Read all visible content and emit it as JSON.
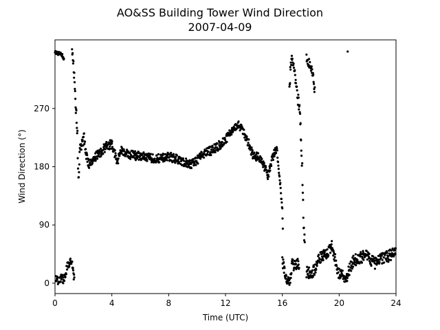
{
  "chart_data": {
    "type": "scatter",
    "title": "AO&SS Building Tower Wind Direction",
    "subtitle": "2007-04-09",
    "xlabel": "Time (UTC)",
    "ylabel": "Wind Direction (°)",
    "xlim": [
      0,
      24
    ],
    "ylim": [
      -16,
      376
    ],
    "x_ticks": [
      0,
      4,
      8,
      12,
      16,
      20,
      24
    ],
    "y_ticks": [
      0,
      90,
      180,
      270
    ],
    "grid": false,
    "marker_color": "#000000",
    "series": [
      {
        "segments": [
          {
            "points": [
              [
                0.0,
                356
              ],
              [
                0.3,
                355
              ],
              [
                0.55,
                351
              ],
              [
                0.65,
                345
              ]
            ],
            "jitter": 3
          },
          {
            "points": [
              [
                0.05,
                6
              ],
              [
                0.25,
                3
              ],
              [
                0.45,
                8
              ],
              [
                0.6,
                5
              ],
              [
                0.75,
                16
              ],
              [
                0.85,
                26
              ],
              [
                1.0,
                30
              ],
              [
                1.15,
                34
              ],
              [
                1.25,
                28
              ],
              [
                1.3,
                12
              ],
              [
                1.38,
                3
              ]
            ],
            "jitter": 6
          },
          {
            "points": [
              [
                1.2,
                355
              ],
              [
                1.3,
                340
              ],
              [
                1.38,
                310
              ],
              [
                1.45,
                275
              ],
              [
                1.52,
                255
              ],
              [
                1.58,
                230
              ],
              [
                1.6,
                190
              ],
              [
                1.65,
                160
              ],
              [
                1.75,
                205
              ],
              [
                1.9,
                215
              ],
              [
                2.05,
                225
              ],
              [
                2.2,
                195
              ],
              [
                2.4,
                185
              ]
            ],
            "jitter": 8
          },
          {
            "points": [
              [
                2.4,
                185
              ],
              [
                2.8,
                195
              ],
              [
                3.2,
                202
              ],
              [
                3.6,
                212
              ],
              [
                4.0,
                215
              ],
              [
                4.2,
                200
              ],
              [
                4.4,
                185
              ],
              [
                4.6,
                205
              ],
              [
                5.0,
                200
              ],
              [
                5.5,
                198
              ],
              [
                6.0,
                196
              ],
              [
                6.5,
                195
              ],
              [
                7.0,
                193
              ],
              [
                7.5,
                193
              ],
              [
                8.0,
                196
              ],
              [
                8.5,
                192
              ],
              [
                9.0,
                188
              ],
              [
                9.5,
                183
              ],
              [
                10.0,
                190
              ],
              [
                10.5,
                200
              ],
              [
                11.0,
                205
              ],
              [
                11.5,
                212
              ],
              [
                12.0,
                220
              ],
              [
                12.3,
                232
              ],
              [
                12.6,
                242
              ],
              [
                12.9,
                244
              ],
              [
                13.2,
                238
              ],
              [
                13.4,
                228
              ],
              [
                13.6,
                218
              ],
              [
                13.9,
                200
              ],
              [
                14.2,
                195
              ],
              [
                14.5,
                192
              ],
              [
                14.8,
                178
              ],
              [
                15.0,
                165
              ],
              [
                15.2,
                185
              ],
              [
                15.4,
                200
              ],
              [
                15.6,
                210
              ],
              [
                15.7,
                185
              ],
              [
                15.8,
                165
              ],
              [
                15.9,
                140
              ],
              [
                16.0,
                110
              ],
              [
                16.05,
                80
              ]
            ],
            "jitter": 7
          },
          {
            "points": [
              [
                16.0,
                35
              ],
              [
                16.1,
                25
              ],
              [
                16.2,
                15
              ],
              [
                16.35,
                5
              ],
              [
                16.5,
                3
              ],
              [
                16.6,
                12
              ],
              [
                16.7,
                30
              ],
              [
                16.9,
                26
              ],
              [
                17.1,
                30
              ],
              [
                17.2,
                22
              ]
            ],
            "jitter": 8
          },
          {
            "points": [
              [
                16.5,
                300
              ],
              [
                16.6,
                340
              ],
              [
                16.75,
                345
              ],
              [
                16.9,
                320
              ],
              [
                17.0,
                300
              ],
              [
                17.1,
                285
              ],
              [
                17.25,
                260
              ],
              [
                17.3,
                230
              ],
              [
                17.35,
                200
              ],
              [
                17.4,
                180
              ],
              [
                17.5,
                80
              ],
              [
                17.6,
                60
              ]
            ],
            "jitter": 10
          },
          {
            "points": [
              [
                17.7,
                350
              ],
              [
                18.1,
                330
              ],
              [
                18.3,
                295
              ]
            ],
            "jitter": 8
          },
          {
            "points": [
              [
                17.7,
                18
              ],
              [
                18.0,
                14
              ],
              [
                18.3,
                22
              ],
              [
                18.6,
                38
              ],
              [
                19.0,
                45
              ],
              [
                19.3,
                50
              ],
              [
                19.5,
                58
              ],
              [
                19.7,
                40
              ],
              [
                19.9,
                18
              ],
              [
                20.2,
                12
              ],
              [
                20.5,
                8
              ],
              [
                20.8,
                25
              ],
              [
                21.0,
                35
              ],
              [
                21.5,
                40
              ],
              [
                22.0,
                42
              ],
              [
                22.3,
                35
              ],
              [
                22.6,
                30
              ],
              [
                23.0,
                38
              ],
              [
                23.5,
                42
              ],
              [
                24.0,
                48
              ]
            ],
            "jitter": 9
          },
          {
            "points": [
              [
                20.6,
                358
              ]
            ],
            "jitter": 1
          }
        ]
      }
    ]
  }
}
